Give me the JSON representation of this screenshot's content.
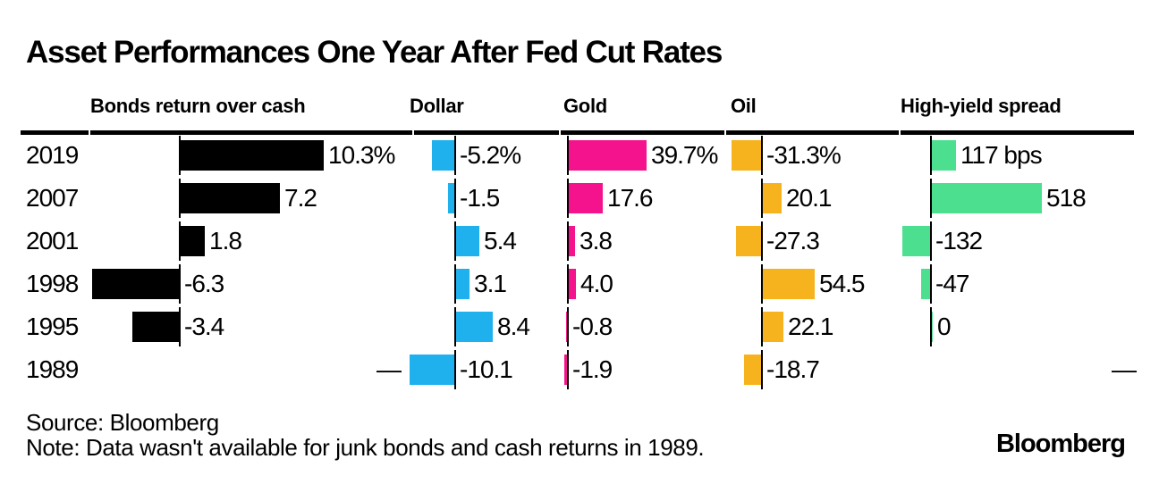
{
  "title": "Asset Performances One Year After Fed Cut Rates",
  "footer": {
    "source": "Source: Bloomberg",
    "note": "Note: Data wasn't available for junk bonds and cash returns in 1989.",
    "logo": "Bloomberg"
  },
  "missing_marker": "—",
  "colors": {
    "bonds": "#000000",
    "dollar": "#1FB1EE",
    "gold": "#F5128D",
    "oil": "#F6B31D",
    "high_yield": "#4CDF90",
    "axis": "#000000",
    "background": "#FFFFFF"
  },
  "chart_data": {
    "type": "bar",
    "orientation": "horizontal",
    "grid": false,
    "legend": "none",
    "categories": [
      "2019",
      "2007",
      "2001",
      "1998",
      "1995",
      "1989"
    ],
    "columns": [
      {
        "label": "Bonds return over cash",
        "unit": "%",
        "color": "#000000",
        "values": [
          10.3,
          7.2,
          1.8,
          -6.3,
          -3.4,
          null
        ],
        "labels": [
          "10.3%",
          "7.2",
          "1.8",
          "-6.3",
          "-3.4",
          "—"
        ]
      },
      {
        "label": "Dollar",
        "unit": "%",
        "color": "#1FB1EE",
        "values": [
          -5.2,
          -1.5,
          5.4,
          3.1,
          8.4,
          -10.1
        ],
        "labels": [
          "-5.2%",
          "-1.5",
          "5.4",
          "3.1",
          "8.4",
          "-10.1"
        ]
      },
      {
        "label": "Gold",
        "unit": "%",
        "color": "#F5128D",
        "values": [
          39.7,
          17.6,
          3.8,
          4.0,
          -0.8,
          -1.9
        ],
        "labels": [
          "39.7%",
          "17.6",
          "3.8",
          "4.0",
          "-0.8",
          "-1.9"
        ]
      },
      {
        "label": "Oil",
        "unit": "%",
        "color": "#F6B31D",
        "values": [
          -31.3,
          20.1,
          -27.3,
          54.5,
          22.1,
          -18.7
        ],
        "labels": [
          "-31.3%",
          "20.1",
          "-27.3",
          "54.5",
          "22.1",
          "-18.7"
        ]
      },
      {
        "label": "High-yield spread",
        "unit": "bps",
        "color": "#4CDF90",
        "values": [
          117,
          518,
          -132,
          -47,
          0,
          null
        ],
        "labels": [
          "117 bps",
          "518",
          "-132",
          "-47",
          "0",
          "—"
        ]
      }
    ]
  }
}
